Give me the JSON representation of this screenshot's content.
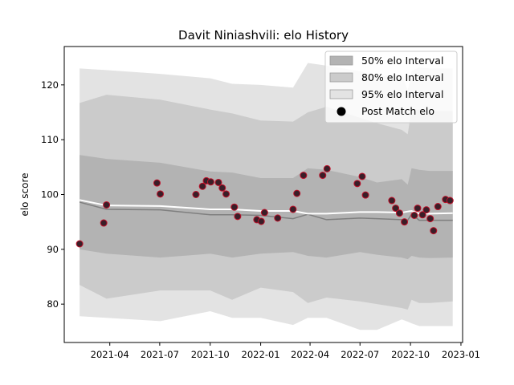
{
  "chart_data": {
    "type": "line",
    "title": "Davit Niniashvili: elo History",
    "xlabel": "",
    "ylabel": "elo score",
    "xlim": [
      "2021-01-08",
      "2023-01-04"
    ],
    "ylim": [
      73,
      127
    ],
    "x_ticks": [
      "2021-04-01",
      "2021-07-01",
      "2021-10-01",
      "2022-01-01",
      "2022-04-01",
      "2022-07-01",
      "2022-10-01",
      "2023-01-01"
    ],
    "x_tick_labels": [
      "2021-04",
      "2021-07",
      "2021-10",
      "2022-01",
      "2022-04",
      "2022-07",
      "2022-10",
      "2023-01"
    ],
    "y_ticks": [
      80,
      90,
      100,
      110,
      120
    ],
    "y_tick_labels": [
      "80",
      "90",
      "100",
      "110",
      "120"
    ],
    "grid": false,
    "legend_position": "top-right",
    "legend": {
      "band50": "50% elo Interval",
      "band80": "80% elo Interval",
      "band95": "95% elo Interval",
      "points": "Post Match elo"
    },
    "colors": {
      "band50": "#b3b3b3",
      "band80": "#cbcbcb",
      "band95": "#e3e3e3",
      "mean_line": "#ffffff",
      "median_line": "#7f7f7f",
      "point_fill": "#3a1e28",
      "point_edge": "#c0112a"
    },
    "bands": {
      "dates": [
        "2021-02-05",
        "2021-03-26",
        "2021-07-02",
        "2021-10-01",
        "2021-11-10",
        "2022-01-01",
        "2022-03-01",
        "2022-03-28",
        "2022-05-01",
        "2022-07-01",
        "2022-08-01",
        "2022-09-15",
        "2022-09-26",
        "2022-10-03",
        "2022-10-17",
        "2022-11-05",
        "2022-12-17"
      ],
      "mean": [
        99.0,
        98.0,
        97.9,
        97.3,
        97.3,
        97.0,
        97.0,
        96.5,
        96.5,
        96.8,
        96.8,
        96.7,
        96.9,
        97.0,
        96.5,
        96.5,
        96.6
      ],
      "median": [
        98.6,
        97.3,
        97.2,
        96.3,
        96.3,
        96.2,
        95.6,
        96.4,
        95.4,
        95.7,
        95.6,
        95.4,
        95.3,
        96.4,
        95.3,
        95.3,
        95.3
      ],
      "p50_low": [
        90.0,
        89.2,
        88.5,
        89.2,
        88.5,
        89.2,
        89.5,
        88.8,
        88.5,
        89.5,
        89.0,
        88.5,
        88.2,
        88.8,
        88.5,
        88.4,
        88.5
      ],
      "p50_high": [
        107.2,
        106.5,
        105.8,
        104.2,
        104.0,
        103.0,
        103.0,
        104.8,
        104.5,
        103.2,
        102.2,
        102.8,
        101.8,
        104.8,
        104.5,
        104.3,
        104.3
      ],
      "p80_low": [
        83.5,
        81.0,
        82.5,
        82.5,
        80.8,
        83.0,
        82.2,
        80.2,
        81.2,
        80.5,
        80.0,
        79.3,
        79.0,
        80.8,
        80.2,
        80.2,
        80.5
      ],
      "p80_high": [
        116.7,
        118.2,
        117.3,
        115.5,
        114.8,
        113.5,
        113.3,
        115.0,
        116.0,
        114.0,
        113.0,
        111.8,
        111.0,
        115.5,
        115.5,
        115.2,
        115.2
      ],
      "p95_low": [
        77.8,
        77.5,
        76.9,
        78.7,
        77.5,
        77.5,
        76.2,
        77.5,
        77.5,
        75.3,
        75.3,
        77.2,
        76.8,
        76.5,
        76.0,
        76.0,
        76.0
      ],
      "p95_high": [
        123.0,
        122.7,
        122.0,
        121.2,
        120.2,
        120.0,
        119.5,
        124.0,
        123.5,
        122.5,
        121.5,
        122.0,
        119.0,
        122.5,
        123.2,
        123.0,
        123.0
      ]
    },
    "points": [
      {
        "x": "2021-02-05",
        "y": 91.0
      },
      {
        "x": "2021-03-21",
        "y": 94.8
      },
      {
        "x": "2021-03-26",
        "y": 98.1
      },
      {
        "x": "2021-06-26",
        "y": 102.1
      },
      {
        "x": "2021-07-02",
        "y": 100.1
      },
      {
        "x": "2021-09-05",
        "y": 100.0
      },
      {
        "x": "2021-09-17",
        "y": 101.5
      },
      {
        "x": "2021-09-24",
        "y": 102.5
      },
      {
        "x": "2021-10-02",
        "y": 102.3
      },
      {
        "x": "2021-10-16",
        "y": 102.2
      },
      {
        "x": "2021-10-23",
        "y": 101.2
      },
      {
        "x": "2021-10-30",
        "y": 100.1
      },
      {
        "x": "2021-11-14",
        "y": 97.7
      },
      {
        "x": "2021-11-20",
        "y": 96.0
      },
      {
        "x": "2021-12-25",
        "y": 95.4
      },
      {
        "x": "2022-01-02",
        "y": 95.1
      },
      {
        "x": "2022-01-08",
        "y": 96.7
      },
      {
        "x": "2022-02-01",
        "y": 95.7
      },
      {
        "x": "2022-03-01",
        "y": 97.3
      },
      {
        "x": "2022-03-08",
        "y": 100.2
      },
      {
        "x": "2022-03-20",
        "y": 103.5
      },
      {
        "x": "2022-04-24",
        "y": 103.5
      },
      {
        "x": "2022-05-02",
        "y": 104.7
      },
      {
        "x": "2022-06-26",
        "y": 102.0
      },
      {
        "x": "2022-07-05",
        "y": 103.3
      },
      {
        "x": "2022-07-11",
        "y": 99.9
      },
      {
        "x": "2022-08-28",
        "y": 98.9
      },
      {
        "x": "2022-09-04",
        "y": 97.5
      },
      {
        "x": "2022-09-11",
        "y": 96.6
      },
      {
        "x": "2022-09-20",
        "y": 95.0
      },
      {
        "x": "2022-10-08",
        "y": 96.2
      },
      {
        "x": "2022-10-14",
        "y": 97.5
      },
      {
        "x": "2022-10-23",
        "y": 96.3
      },
      {
        "x": "2022-10-30",
        "y": 97.2
      },
      {
        "x": "2022-11-06",
        "y": 95.6
      },
      {
        "x": "2022-11-12",
        "y": 93.4
      },
      {
        "x": "2022-11-20",
        "y": 97.8
      },
      {
        "x": "2022-12-04",
        "y": 99.1
      },
      {
        "x": "2022-12-12",
        "y": 98.9
      }
    ]
  }
}
